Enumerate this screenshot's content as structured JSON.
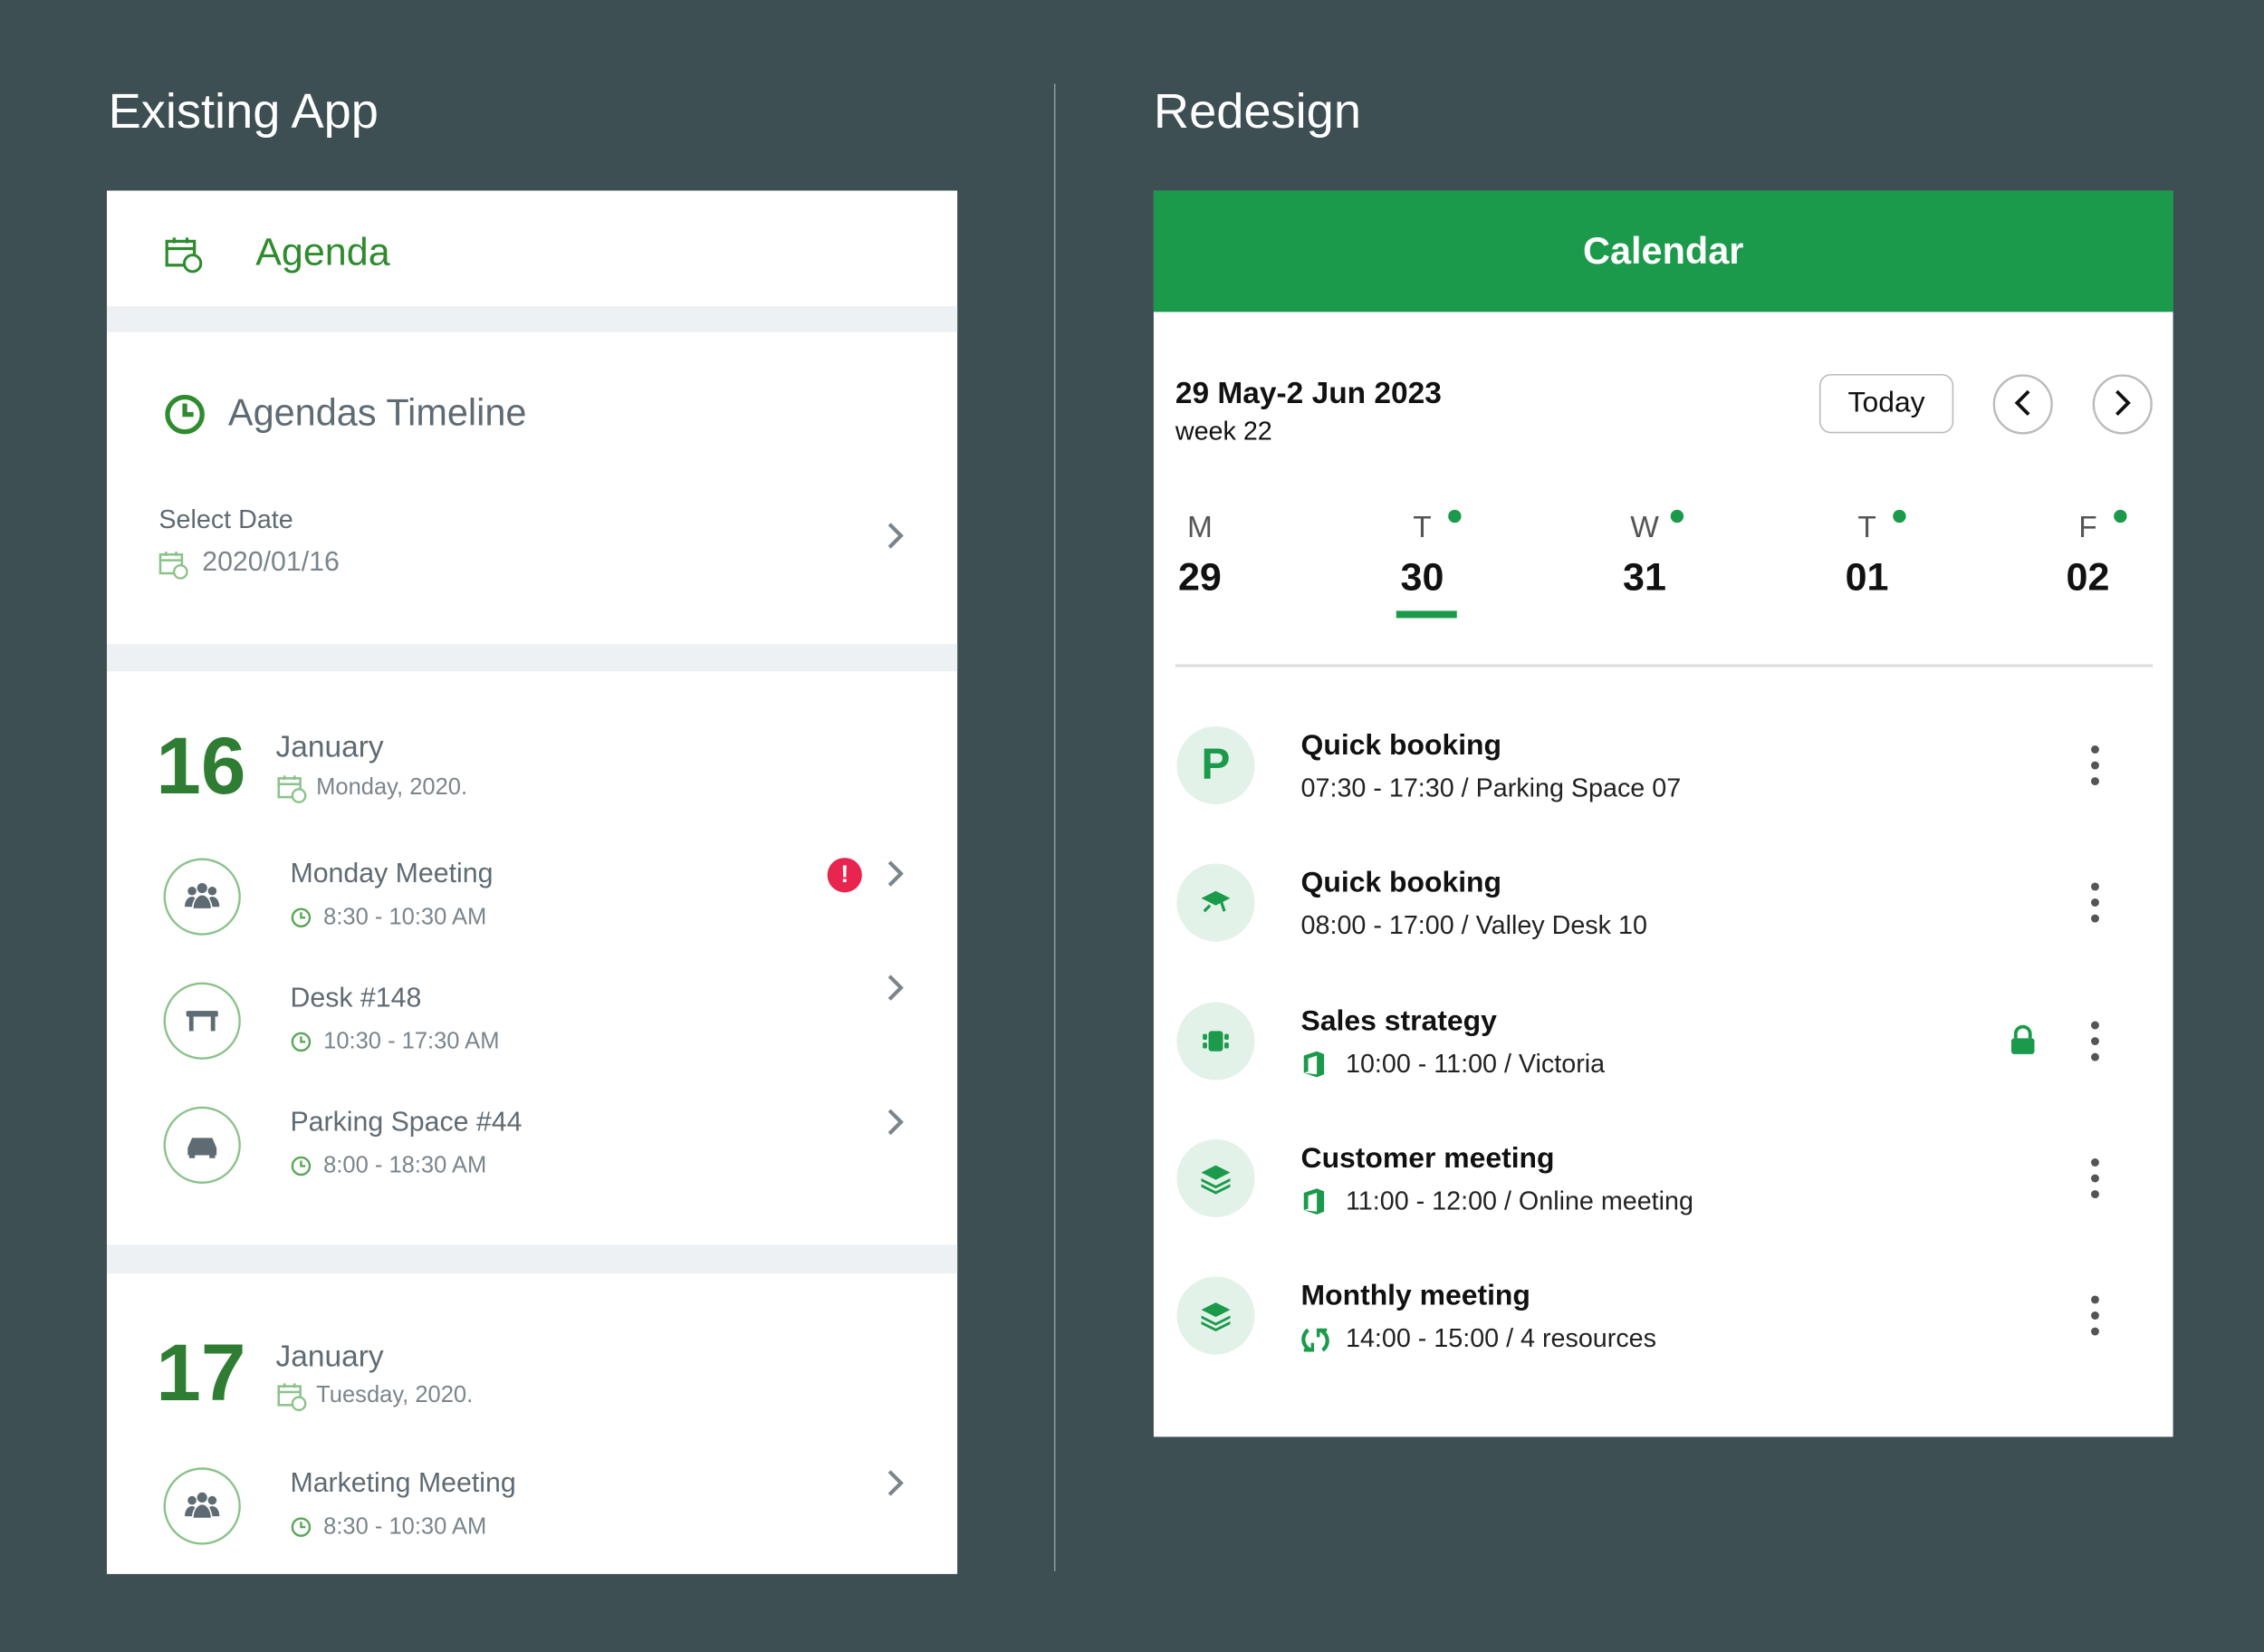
{
  "left": {
    "heading": "Existing App",
    "header": "Agenda",
    "timeline": "Agendas Timeline",
    "select_date_label": "Select Date",
    "select_date": "2020/01/16",
    "days": [
      {
        "day": "16",
        "month": "January",
        "weekday": "Monday, 2020.",
        "items": [
          {
            "title": "Monday Meeting",
            "time": "8:30  - 10:30 AM",
            "alert": "!"
          },
          {
            "title": "Desk #148",
            "time": "10:30  - 17:30 AM"
          },
          {
            "title": "Parking Space #44",
            "time": "8:00  - 18:30 AM"
          }
        ]
      },
      {
        "day": "17",
        "month": "January",
        "weekday": "Tuesday, 2020.",
        "items": [
          {
            "title": "Marketing Meeting",
            "time": "8:30  - 10:30 AM"
          }
        ]
      }
    ]
  },
  "right": {
    "heading": "Redesign",
    "header": "Calendar",
    "range": "29 May-2 Jun 2023",
    "week": "week 22",
    "today": "Today",
    "days": [
      {
        "letter": "M",
        "number": "29",
        "dot": false,
        "selected": false
      },
      {
        "letter": "T",
        "number": "30",
        "dot": true,
        "selected": true
      },
      {
        "letter": "W",
        "number": "31",
        "dot": true,
        "selected": false
      },
      {
        "letter": "T",
        "number": "01",
        "dot": true,
        "selected": false
      },
      {
        "letter": "F",
        "number": "02",
        "dot": true,
        "selected": false
      }
    ],
    "events": [
      {
        "icon": "P",
        "title": "Quick booking",
        "detail": "07:30 - 17:30 / Parking Space 07"
      },
      {
        "title": "Quick booking",
        "detail": "08:00 - 17:00 / Valley Desk 10"
      },
      {
        "title": "Sales strategy",
        "detail": "10:00  - 11:00 / Victoria",
        "locked": true
      },
      {
        "title": "Customer meeting",
        "detail": "11:00  - 12:00 / Online meeting"
      },
      {
        "title": "Monthly meeting",
        "detail": "14:00  - 15:00 / 4 resources"
      }
    ]
  }
}
